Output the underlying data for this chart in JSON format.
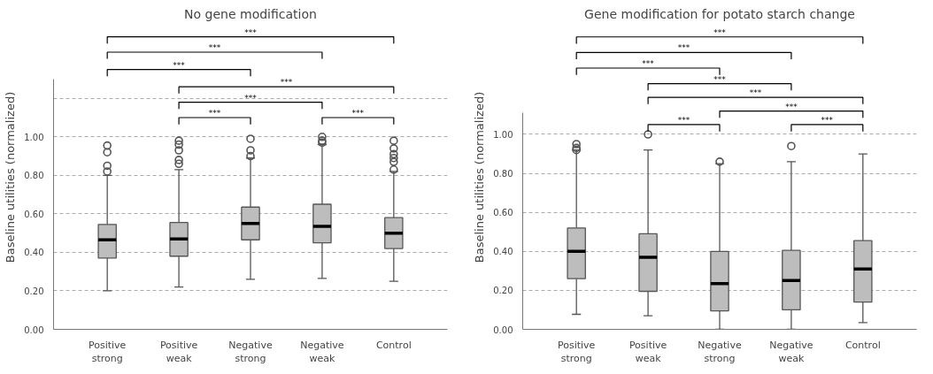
{
  "chart_data": [
    {
      "type": "box",
      "title": "No gene modification",
      "ylabel": "Baseline utilities (normalized)",
      "categories": [
        "Positive strong",
        "Positive weak",
        "Negative strong",
        "Negative weak",
        "Control"
      ],
      "series": [
        {
          "color": "#bdbdbd",
          "boxes": [
            {
              "low": 0.2,
              "q1": 0.37,
              "median": 0.465,
              "q3": 0.545,
              "high": 0.8,
              "outliers": [
                0.82,
                0.85,
                0.92,
                0.955
              ]
            },
            {
              "low": 0.22,
              "q1": 0.38,
              "median": 0.47,
              "q3": 0.555,
              "high": 0.83,
              "outliers": [
                0.86,
                0.88,
                0.93,
                0.96,
                0.98
              ]
            },
            {
              "low": 0.26,
              "q1": 0.465,
              "median": 0.55,
              "q3": 0.635,
              "high": 0.89,
              "outliers": [
                0.9,
                0.93,
                0.99
              ]
            },
            {
              "low": 0.265,
              "q1": 0.45,
              "median": 0.535,
              "q3": 0.65,
              "high": 0.96,
              "outliers": [
                0.97,
                0.98,
                1.0
              ]
            },
            {
              "low": 0.25,
              "q1": 0.42,
              "median": 0.5,
              "q3": 0.58,
              "high": 0.82,
              "outliers": [
                0.83,
                0.87,
                0.89,
                0.91,
                0.94,
                0.98
              ]
            }
          ]
        }
      ],
      "ylim": [
        0,
        1.3
      ],
      "yticks": [
        {
          "value": 0,
          "label": "0.00"
        },
        {
          "value": 0.2,
          "label": "0.20"
        },
        {
          "value": 0.4,
          "label": "0.40"
        },
        {
          "value": 0.6,
          "label": "0.60"
        },
        {
          "value": 0.8,
          "label": "0.80"
        },
        {
          "value": 1.0,
          "label": "1.00"
        },
        {
          "value": 1.2,
          "label": null
        }
      ],
      "grid": "y",
      "annotations": [
        "***",
        "***",
        "***",
        "***",
        "***",
        "***",
        "***"
      ]
    },
    {
      "type": "box",
      "title": "Gene modification for potato starch change",
      "ylabel": "Baseline utilities (normalized)",
      "categories": [
        "Positive strong",
        "Positive weak",
        "Negative strong",
        "Negative weak",
        "Control"
      ],
      "series": [
        {
          "color": "#bdbdbd",
          "boxes": [
            {
              "low": 0.077,
              "q1": 0.26,
              "median": 0.4,
              "q3": 0.52,
              "high": 0.92,
              "outliers": [
                0.92,
                0.93,
                0.95
              ]
            },
            {
              "low": 0.07,
              "q1": 0.195,
              "median": 0.37,
              "q3": 0.49,
              "high": 0.92,
              "outliers": [
                1.0
              ]
            },
            {
              "low": 0.0,
              "q1": 0.095,
              "median": 0.235,
              "q3": 0.4,
              "high": 0.85,
              "outliers": [
                0.86
              ]
            },
            {
              "low": 0.0,
              "q1": 0.1,
              "median": 0.25,
              "q3": 0.405,
              "high": 0.86,
              "outliers": [
                0.94
              ]
            },
            {
              "low": 0.035,
              "q1": 0.14,
              "median": 0.31,
              "q3": 0.455,
              "high": 0.9
            }
          ]
        }
      ],
      "ylim": [
        0,
        1.11
      ],
      "yticks": [
        {
          "value": 0,
          "label": "0.00"
        },
        {
          "value": 0.2,
          "label": "0.20"
        },
        {
          "value": 0.4,
          "label": "0.40"
        },
        {
          "value": 0.6,
          "label": "0.60"
        },
        {
          "value": 0.8,
          "label": "0.80"
        },
        {
          "value": 1.0,
          "label": "1.00"
        }
      ],
      "grid": "y",
      "annotations": [
        "***",
        "***",
        "***",
        "***",
        "***",
        "***",
        "***",
        "***"
      ]
    }
  ]
}
